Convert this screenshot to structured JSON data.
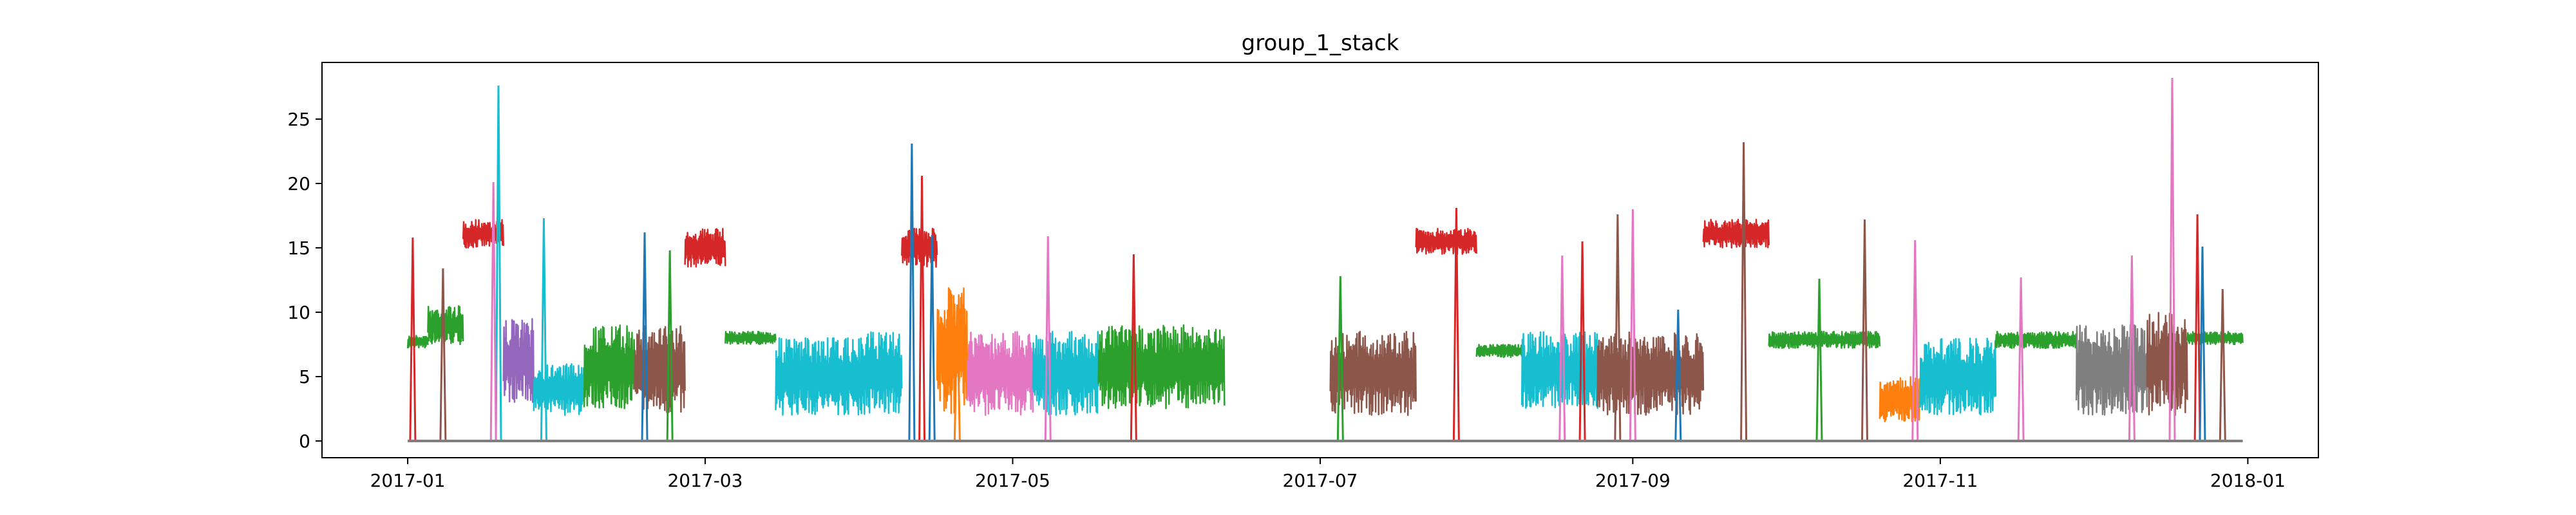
{
  "chart_data": {
    "type": "line",
    "title": "group_1_stack",
    "xlabel": "",
    "ylabel": "",
    "x_range": [
      "2016-12-15",
      "2018-01-15"
    ],
    "ylim": [
      -1.3,
      29.4
    ],
    "x_ticks": [
      "2017-01",
      "2017-03",
      "2017-05",
      "2017-07",
      "2017-09",
      "2017-11",
      "2018-01"
    ],
    "y_ticks": [
      0,
      5,
      10,
      15,
      20,
      25
    ],
    "grid": false,
    "legend": "none",
    "palette": [
      "#1f77b4",
      "#ff7f0e",
      "#2ca02c",
      "#d62728",
      "#9467bd",
      "#8c564b",
      "#e377c2",
      "#7f7f7f",
      "#bcbd22",
      "#17becf"
    ],
    "data_window": [
      "2017-01-01",
      "2017-12-31"
    ],
    "gap": [
      "2017-06-12",
      "2017-07-03"
    ],
    "series_note": "many overlapping series; values summarized below as approximate bursts",
    "segments": [
      {
        "start": "2017-01-01",
        "end": "2017-01-05",
        "low": 7.2,
        "high": 8.2,
        "color": "#2ca02c"
      },
      {
        "start": "2017-01-05",
        "end": "2017-01-12",
        "low": 7.5,
        "high": 10.5,
        "color": "#2ca02c"
      },
      {
        "start": "2017-01-12",
        "end": "2017-01-20",
        "low": 15,
        "high": 17.2,
        "color": "#d62728"
      },
      {
        "start": "2017-01-20",
        "end": "2017-01-26",
        "low": 3,
        "high": 9.5,
        "color": "#9467bd"
      },
      {
        "start": "2017-01-26",
        "end": "2017-02-05",
        "low": 2,
        "high": 6,
        "color": "#17becf"
      },
      {
        "start": "2017-02-05",
        "end": "2017-02-15",
        "low": 2.5,
        "high": 9,
        "color": "#2ca02c"
      },
      {
        "start": "2017-02-15",
        "end": "2017-02-25",
        "low": 2,
        "high": 9,
        "color": "#8c564b"
      },
      {
        "start": "2017-02-25",
        "end": "2017-03-05",
        "low": 13.5,
        "high": 16.5,
        "color": "#d62728"
      },
      {
        "start": "2017-03-05",
        "end": "2017-03-15",
        "low": 7.5,
        "high": 8.5,
        "color": "#2ca02c"
      },
      {
        "start": "2017-03-15",
        "end": "2017-04-01",
        "low": 2,
        "high": 8,
        "color": "#17becf"
      },
      {
        "start": "2017-04-01",
        "end": "2017-04-09",
        "low": 2,
        "high": 8.5,
        "color": "#17becf"
      },
      {
        "start": "2017-04-09",
        "end": "2017-04-16",
        "low": 13.5,
        "high": 16.5,
        "color": "#d62728"
      },
      {
        "start": "2017-04-16",
        "end": "2017-04-22",
        "low": 2,
        "high": 12,
        "color": "#ff7f0e"
      },
      {
        "start": "2017-04-22",
        "end": "2017-05-05",
        "low": 2,
        "high": 8.5,
        "color": "#e377c2"
      },
      {
        "start": "2017-05-05",
        "end": "2017-05-18",
        "low": 2,
        "high": 8.5,
        "color": "#17becf"
      },
      {
        "start": "2017-05-18",
        "end": "2017-06-12",
        "low": 2.5,
        "high": 9,
        "color": "#2ca02c"
      },
      {
        "start": "2017-07-03",
        "end": "2017-07-20",
        "low": 2,
        "high": 8.5,
        "color": "#8c564b"
      },
      {
        "start": "2017-07-20",
        "end": "2017-08-01",
        "low": 14.5,
        "high": 16.5,
        "color": "#d62728"
      },
      {
        "start": "2017-08-01",
        "end": "2017-08-10",
        "low": 6.5,
        "high": 7.5,
        "color": "#2ca02c"
      },
      {
        "start": "2017-08-10",
        "end": "2017-08-25",
        "low": 2.5,
        "high": 8.5,
        "color": "#17becf"
      },
      {
        "start": "2017-08-25",
        "end": "2017-09-15",
        "low": 2,
        "high": 8.5,
        "color": "#8c564b"
      },
      {
        "start": "2017-09-15",
        "end": "2017-09-28",
        "low": 15,
        "high": 17.2,
        "color": "#d62728"
      },
      {
        "start": "2017-09-28",
        "end": "2017-10-20",
        "low": 7.2,
        "high": 8.5,
        "color": "#2ca02c"
      },
      {
        "start": "2017-10-20",
        "end": "2017-10-28",
        "low": 1.5,
        "high": 5,
        "color": "#ff7f0e"
      },
      {
        "start": "2017-10-28",
        "end": "2017-11-12",
        "low": 2,
        "high": 8,
        "color": "#17becf"
      },
      {
        "start": "2017-11-12",
        "end": "2017-11-28",
        "low": 7.2,
        "high": 8.5,
        "color": "#2ca02c"
      },
      {
        "start": "2017-11-28",
        "end": "2017-12-12",
        "low": 2,
        "high": 9,
        "color": "#7f7f7f"
      },
      {
        "start": "2017-12-12",
        "end": "2017-12-20",
        "low": 2,
        "high": 10,
        "color": "#8c564b"
      },
      {
        "start": "2017-12-20",
        "end": "2017-12-31",
        "low": 7.5,
        "high": 8.5,
        "color": "#2ca02c"
      }
    ],
    "spikes": [
      {
        "date": "2017-01-02",
        "value": 15.8,
        "color": "#d62728"
      },
      {
        "date": "2017-01-08",
        "value": 13.4,
        "color": "#8c564b"
      },
      {
        "date": "2017-01-19",
        "value": 27.6,
        "color": "#17becf"
      },
      {
        "date": "2017-01-18",
        "value": 20.1,
        "color": "#e377c2"
      },
      {
        "date": "2017-01-28",
        "value": 17.3,
        "color": "#17becf"
      },
      {
        "date": "2017-02-17",
        "value": 16.2,
        "color": "#1f77b4"
      },
      {
        "date": "2017-02-22",
        "value": 14.8,
        "color": "#2ca02c"
      },
      {
        "date": "2017-04-11",
        "value": 23.1,
        "color": "#1f77b4"
      },
      {
        "date": "2017-04-13",
        "value": 20.6,
        "color": "#d62728"
      },
      {
        "date": "2017-04-15",
        "value": 16,
        "color": "#1f77b4"
      },
      {
        "date": "2017-04-20",
        "value": 10.6,
        "color": "#ff7f0e"
      },
      {
        "date": "2017-05-08",
        "value": 15.9,
        "color": "#e377c2"
      },
      {
        "date": "2017-05-25",
        "value": 14.5,
        "color": "#d62728"
      },
      {
        "date": "2017-07-05",
        "value": 12.8,
        "color": "#2ca02c"
      },
      {
        "date": "2017-07-28",
        "value": 18.1,
        "color": "#d62728"
      },
      {
        "date": "2017-08-18",
        "value": 14.4,
        "color": "#e377c2"
      },
      {
        "date": "2017-08-22",
        "value": 15.5,
        "color": "#d62728"
      },
      {
        "date": "2017-09-01",
        "value": 18,
        "color": "#e377c2"
      },
      {
        "date": "2017-08-29",
        "value": 17.6,
        "color": "#8c564b"
      },
      {
        "date": "2017-09-10",
        "value": 10.2,
        "color": "#1f77b4"
      },
      {
        "date": "2017-09-23",
        "value": 23.2,
        "color": "#8c564b"
      },
      {
        "date": "2017-10-08",
        "value": 12.6,
        "color": "#2ca02c"
      },
      {
        "date": "2017-10-17",
        "value": 17.2,
        "color": "#8c564b"
      },
      {
        "date": "2017-10-27",
        "value": 15.6,
        "color": "#e377c2"
      },
      {
        "date": "2017-11-17",
        "value": 12.7,
        "color": "#e377c2"
      },
      {
        "date": "2017-12-09",
        "value": 14.4,
        "color": "#e377c2"
      },
      {
        "date": "2017-12-17",
        "value": 28.2,
        "color": "#e377c2"
      },
      {
        "date": "2017-12-22",
        "value": 17.6,
        "color": "#d62728"
      },
      {
        "date": "2017-12-23",
        "value": 15.1,
        "color": "#1f77b4"
      },
      {
        "date": "2017-12-27",
        "value": 11.8,
        "color": "#8c564b"
      }
    ],
    "baseline": {
      "value": 0,
      "color": "#7f7f7f"
    }
  }
}
